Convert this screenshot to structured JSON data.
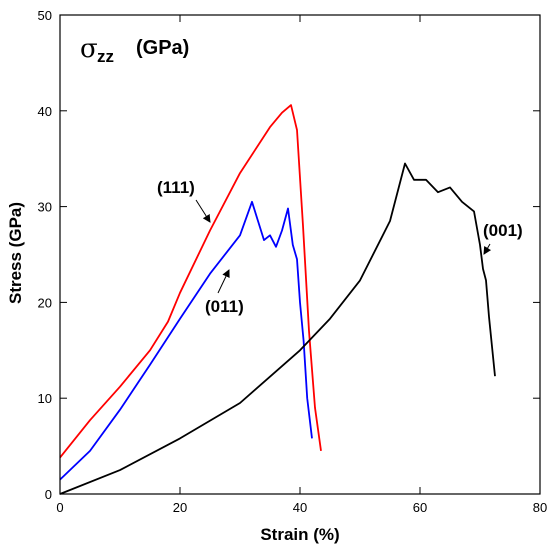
{
  "chart_data": {
    "type": "line",
    "title": {
      "symbol": "σ",
      "subscript": "zz",
      "unit": "(GPa)"
    },
    "xlabel": "Strain (%)",
    "ylabel": "Stress (GPa)",
    "xlim": [
      0,
      80
    ],
    "ylim": [
      0,
      50
    ],
    "xticks": [
      0,
      20,
      40,
      60,
      80
    ],
    "yticks": [
      0,
      10,
      20,
      30,
      40,
      50
    ],
    "grid": false,
    "series": [
      {
        "name": "(111)",
        "color": "#ff0000",
        "x": [
          0,
          5,
          10,
          15,
          18,
          20,
          25,
          30,
          35,
          37,
          38.5,
          39.5,
          40.5,
          41.5,
          42.5,
          43.5
        ],
        "y": [
          3.8,
          7.7,
          11.2,
          15.0,
          18.0,
          21.0,
          27.5,
          33.5,
          38.3,
          39.8,
          40.6,
          38.0,
          28.0,
          17.0,
          9.0,
          4.5
        ]
      },
      {
        "name": "(011)",
        "color": "#0000ff",
        "x": [
          0,
          5,
          10,
          15,
          20,
          25,
          30,
          32,
          33,
          34,
          35,
          36,
          37,
          38,
          38.8,
          39.5,
          40,
          40.6,
          41.2,
          42
        ],
        "y": [
          1.5,
          4.5,
          8.8,
          13.5,
          18.3,
          23.0,
          27.0,
          30.5,
          28.5,
          26.5,
          27.0,
          25.8,
          27.5,
          29.8,
          26.0,
          24.5,
          20.0,
          16.0,
          10.0,
          5.8
        ]
      },
      {
        "name": "(001)",
        "color": "#000000",
        "x": [
          0,
          10,
          20,
          30,
          40,
          45,
          50,
          55,
          57.5,
          59,
          61,
          63,
          65,
          67,
          69,
          70,
          70.5,
          71,
          71.5,
          72.5
        ],
        "y": [
          0,
          2.5,
          5.8,
          9.5,
          15.0,
          18.3,
          22.3,
          28.5,
          34.5,
          32.8,
          32.8,
          31.5,
          32.0,
          30.5,
          29.5,
          26.0,
          23.5,
          22.3,
          18.5,
          12.3
        ]
      }
    ],
    "annotations": [
      {
        "text": "(111)"
      },
      {
        "text": "(011)"
      },
      {
        "text": "(001)"
      }
    ]
  }
}
